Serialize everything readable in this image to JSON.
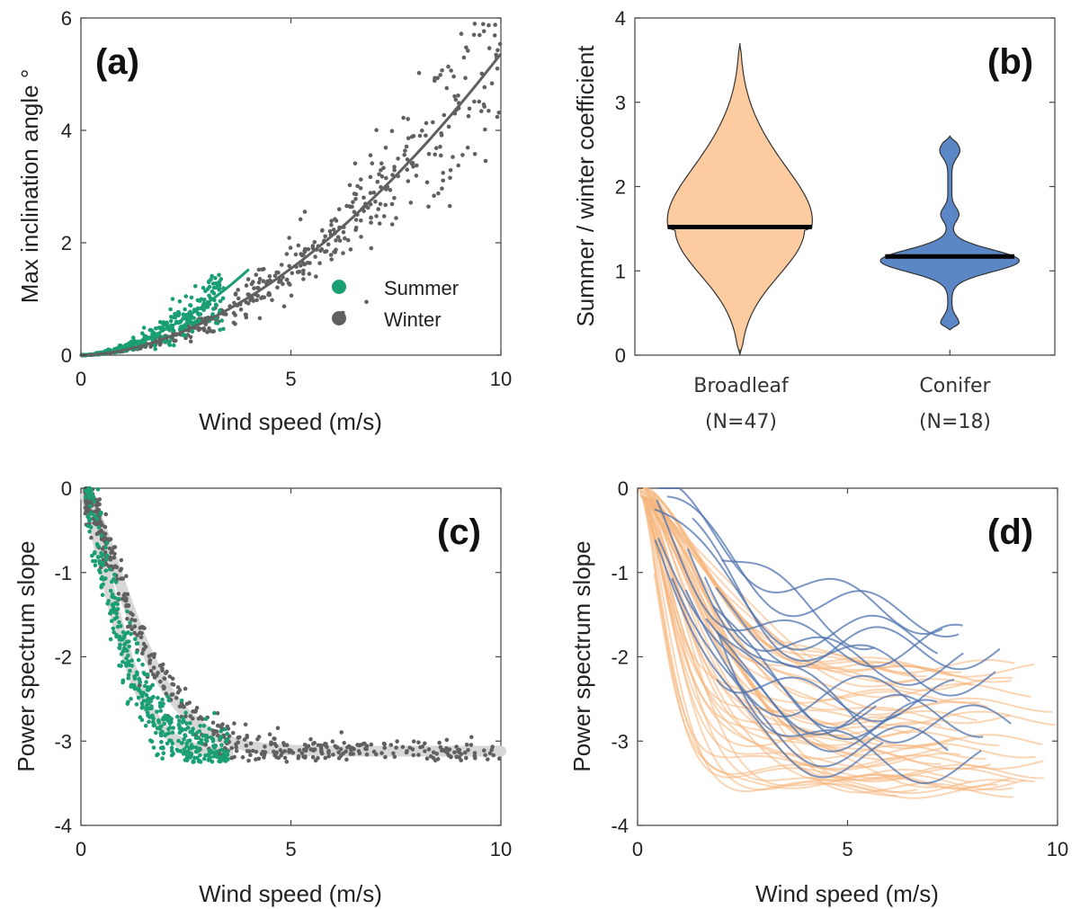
{
  "chart_data": [
    {
      "id": "a",
      "type": "scatter",
      "panel_label": "(a)",
      "xlabel": "Wind speed (m/s)",
      "ylabel": "Max inclination angle °",
      "xlim": [
        0,
        10
      ],
      "ylim": [
        0,
        6
      ],
      "xticks": [
        0,
        5,
        10
      ],
      "yticks": [
        0,
        2,
        4,
        6
      ],
      "legend": {
        "position": "lower-right",
        "entries": [
          "Summer",
          "Winter"
        ]
      },
      "series": [
        {
          "name": "Summer",
          "color": "#1a9e73",
          "x_range": [
            0,
            4
          ],
          "fit": {
            "model": "power",
            "a": 0.135,
            "b": 1.75
          },
          "n_points": 300,
          "noise": 0.28
        },
        {
          "name": "Winter",
          "color": "#606060",
          "x_range": [
            0,
            10
          ],
          "fit": {
            "model": "power",
            "a": 0.085,
            "b": 1.8
          },
          "n_points": 520,
          "noise": 0.16
        }
      ]
    },
    {
      "id": "b",
      "type": "violin",
      "panel_label": "(b)",
      "xlabel": "",
      "ylabel": "Summer / winter coefficient",
      "ylim": [
        0,
        4
      ],
      "yticks": [
        0,
        1,
        2,
        3,
        4
      ],
      "categories": [
        "Broadleaf",
        "Conifer"
      ],
      "category_counts": [
        "(N=47)",
        "(N=18)"
      ],
      "series": [
        {
          "name": "Broadleaf",
          "color": "#fccca0",
          "median": 1.52,
          "min": 0.0,
          "max": 3.7
        },
        {
          "name": "Conifer",
          "color": "#5b87c6",
          "median": 1.17,
          "min": 0.3,
          "max": 2.6
        }
      ]
    },
    {
      "id": "c",
      "type": "scatter",
      "panel_label": "(c)",
      "xlabel": "Wind speed (m/s)",
      "ylabel": "Power spectrum slope",
      "xlim": [
        0,
        10
      ],
      "ylim": [
        -4,
        0
      ],
      "xticks": [
        0,
        5,
        10
      ],
      "yticks": [
        -4,
        -3,
        -2,
        -1,
        0
      ],
      "series": [
        {
          "name": "Summer",
          "color": "#1a9e73",
          "x_range": [
            0.1,
            3.5
          ],
          "plateau": -3.15,
          "decay": 1.1,
          "n_points": 420,
          "noise": 0.28
        },
        {
          "name": "Winter",
          "color": "#606060",
          "x_range": [
            0.1,
            10
          ],
          "plateau": -3.12,
          "decay": 1.6,
          "n_points": 520,
          "noise": 0.18
        }
      ]
    },
    {
      "id": "d",
      "type": "line",
      "panel_label": "(d)",
      "xlabel": "Wind speed (m/s)",
      "ylabel": "Power spectrum slope",
      "xlim": [
        0,
        10
      ],
      "ylim": [
        -4,
        0
      ],
      "xticks": [
        0,
        5,
        10
      ],
      "yticks": [
        -4,
        -3,
        -2,
        -1,
        0
      ],
      "series": [
        {
          "name": "Broadleaf",
          "color": "#f6b47a",
          "n_lines": 47,
          "end_slope_range": [
            -3.6,
            -2.1
          ]
        },
        {
          "name": "Conifer",
          "color": "#4f73ad",
          "n_lines": 18,
          "end_slope_range": [
            -3.5,
            -1.4
          ]
        }
      ]
    }
  ]
}
